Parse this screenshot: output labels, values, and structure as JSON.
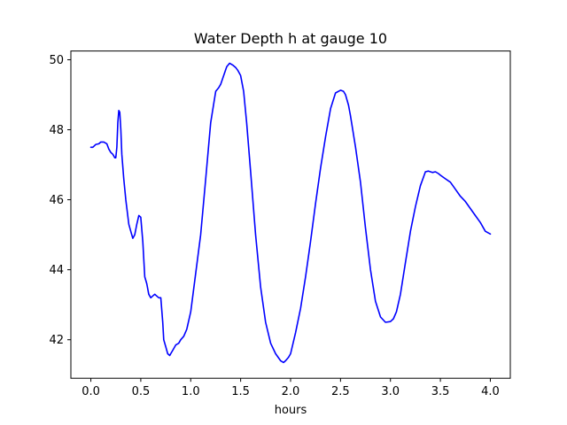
{
  "chart_data": {
    "type": "line",
    "title": "Water Depth h at gauge 10",
    "xlabel": "hours",
    "ylabel": "",
    "xlim": [
      -0.2,
      4.2
    ],
    "ylim": [
      40.9,
      50.25
    ],
    "xticks": [
      0.0,
      0.5,
      1.0,
      1.5,
      2.0,
      2.5,
      3.0,
      3.5,
      4.0
    ],
    "xtick_labels": [
      "0.0",
      "0.5",
      "1.0",
      "1.5",
      "2.0",
      "2.5",
      "3.0",
      "3.5",
      "4.0"
    ],
    "yticks": [
      42,
      44,
      46,
      48,
      50
    ],
    "ytick_labels": [
      "42",
      "44",
      "46",
      "48",
      "50"
    ],
    "grid": false,
    "series": [
      {
        "color": "#0000ff",
        "x": [
          0.0,
          0.02,
          0.05,
          0.08,
          0.1,
          0.13,
          0.16,
          0.18,
          0.2,
          0.22,
          0.24,
          0.25,
          0.26,
          0.27,
          0.28,
          0.29,
          0.3,
          0.31,
          0.33,
          0.35,
          0.38,
          0.4,
          0.42,
          0.44,
          0.46,
          0.48,
          0.5,
          0.52,
          0.54,
          0.56,
          0.58,
          0.6,
          0.62,
          0.64,
          0.66,
          0.68,
          0.7,
          0.72,
          0.73,
          0.75,
          0.77,
          0.79,
          0.8,
          0.82,
          0.85,
          0.88,
          0.9,
          0.93,
          0.96,
          1.0,
          1.05,
          1.1,
          1.15,
          1.2,
          1.25,
          1.28,
          1.3,
          1.33,
          1.36,
          1.39,
          1.42,
          1.45,
          1.47,
          1.5,
          1.53,
          1.56,
          1.6,
          1.65,
          1.7,
          1.75,
          1.8,
          1.85,
          1.9,
          1.93,
          1.95,
          1.98,
          2.0,
          2.05,
          2.1,
          2.15,
          2.2,
          2.25,
          2.3,
          2.35,
          2.4,
          2.45,
          2.5,
          2.53,
          2.55,
          2.58,
          2.6,
          2.65,
          2.7,
          2.75,
          2.8,
          2.85,
          2.9,
          2.95,
          3.0,
          3.03,
          3.06,
          3.1,
          3.15,
          3.2,
          3.25,
          3.3,
          3.35,
          3.38,
          3.4,
          3.42,
          3.45,
          3.48,
          3.5,
          3.55,
          3.6,
          3.65,
          3.7,
          3.75,
          3.8,
          3.85,
          3.9,
          3.95,
          4.0
        ],
        "values": [
          47.5,
          47.5,
          47.58,
          47.6,
          47.65,
          47.65,
          47.6,
          47.45,
          47.35,
          47.3,
          47.2,
          47.2,
          47.5,
          48.2,
          48.55,
          48.5,
          48.0,
          47.3,
          46.6,
          46.0,
          45.3,
          45.1,
          44.9,
          45.0,
          45.3,
          45.55,
          45.5,
          44.8,
          43.8,
          43.6,
          43.3,
          43.2,
          43.25,
          43.3,
          43.25,
          43.2,
          43.2,
          42.5,
          42.0,
          41.8,
          41.6,
          41.55,
          41.6,
          41.7,
          41.85,
          41.9,
          42.0,
          42.1,
          42.3,
          42.8,
          43.9,
          45.0,
          46.6,
          48.2,
          49.1,
          49.2,
          49.3,
          49.55,
          49.8,
          49.9,
          49.85,
          49.78,
          49.7,
          49.55,
          49.1,
          48.2,
          46.8,
          45.0,
          43.5,
          42.5,
          41.9,
          41.6,
          41.4,
          41.35,
          41.4,
          41.5,
          41.6,
          42.2,
          42.9,
          43.8,
          44.8,
          45.9,
          46.9,
          47.8,
          48.6,
          49.05,
          49.13,
          49.1,
          49.0,
          48.7,
          48.4,
          47.5,
          46.5,
          45.2,
          44.0,
          43.1,
          42.65,
          42.5,
          42.52,
          42.6,
          42.8,
          43.3,
          44.2,
          45.1,
          45.8,
          46.4,
          46.8,
          46.82,
          46.8,
          46.78,
          46.8,
          46.75,
          46.7,
          46.6,
          46.5,
          46.3,
          46.1,
          45.95,
          45.75,
          45.55,
          45.35,
          45.1,
          45.02
        ]
      }
    ]
  }
}
